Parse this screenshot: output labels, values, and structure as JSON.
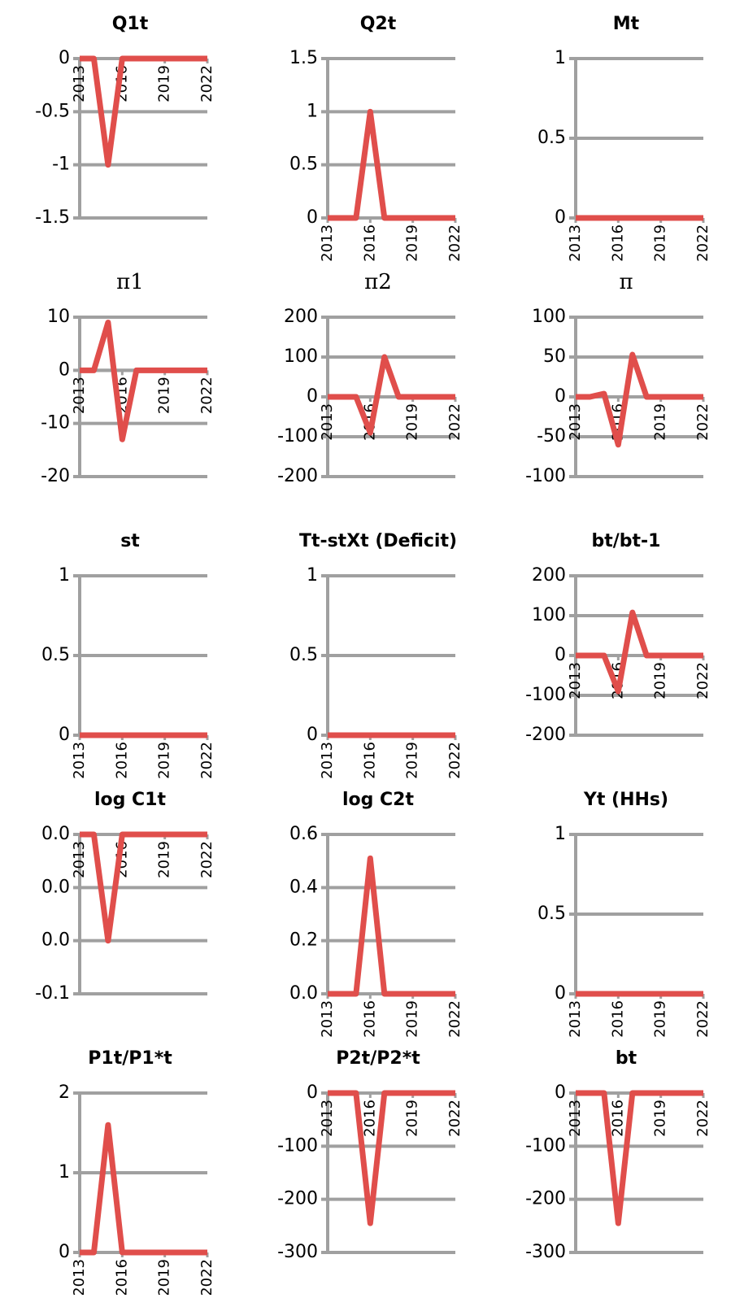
{
  "chart_data": [
    {
      "type": "line",
      "title": "Q1t",
      "x": [
        2013,
        2014,
        2015,
        2016,
        2017,
        2018,
        2019,
        2020,
        2021,
        2022
      ],
      "values": [
        0,
        0,
        -1,
        0,
        0,
        0,
        0,
        0,
        0,
        0
      ],
      "color": "#e04e4b",
      "xlim": [
        2013,
        2022
      ],
      "xticks": [
        2013,
        2016,
        2019,
        2022
      ],
      "ylim": [
        -1.5,
        0
      ],
      "yticks": [
        -1.5,
        -1,
        -0.5,
        0
      ],
      "grid": true
    },
    {
      "type": "line",
      "title": "Q2t",
      "x": [
        2013,
        2014,
        2015,
        2016,
        2017,
        2018,
        2019,
        2020,
        2021,
        2022
      ],
      "values": [
        0,
        0,
        0,
        1,
        0,
        0,
        0,
        0,
        0,
        0
      ],
      "color": "#e04e4b",
      "xlim": [
        2013,
        2022
      ],
      "xticks": [
        2013,
        2016,
        2019,
        2022
      ],
      "ylim": [
        0,
        1.5
      ],
      "yticks": [
        0,
        0.5,
        1,
        1.5
      ],
      "grid": true
    },
    {
      "type": "line",
      "title": "Mt",
      "x": [
        2013,
        2014,
        2015,
        2016,
        2017,
        2018,
        2019,
        2020,
        2021,
        2022
      ],
      "values": [
        0,
        0,
        0,
        0,
        0,
        0,
        0,
        0,
        0,
        0
      ],
      "color": "#e04e4b",
      "xlim": [
        2013,
        2022
      ],
      "xticks": [
        2013,
        2016,
        2019,
        2022
      ],
      "ylim": [
        0,
        1
      ],
      "yticks": [
        0,
        0.5,
        1
      ],
      "grid": true
    },
    {
      "type": "line",
      "title": "π1",
      "x": [
        2013,
        2014,
        2015,
        2016,
        2017,
        2018,
        2019,
        2020,
        2021,
        2022
      ],
      "values": [
        0,
        0,
        9,
        -13,
        0,
        0,
        0,
        0,
        0,
        0
      ],
      "color": "#e04e4b",
      "xlim": [
        2013,
        2022
      ],
      "xticks": [
        2013,
        2016,
        2019,
        2022
      ],
      "ylim": [
        -20,
        10
      ],
      "yticks": [
        -20,
        -10,
        0,
        10
      ],
      "grid": true
    },
    {
      "type": "line",
      "title": "π2",
      "x": [
        2013,
        2014,
        2015,
        2016,
        2017,
        2018,
        2019,
        2020,
        2021,
        2022
      ],
      "values": [
        0,
        0,
        0,
        -90,
        100,
        0,
        0,
        0,
        0,
        0
      ],
      "color": "#e04e4b",
      "xlim": [
        2013,
        2022
      ],
      "xticks": [
        2013,
        2016,
        2019,
        2022
      ],
      "ylim": [
        -200,
        200
      ],
      "yticks": [
        -200,
        -100,
        0,
        100,
        200
      ],
      "grid": true
    },
    {
      "type": "line",
      "title": "π",
      "x": [
        2013,
        2014,
        2015,
        2016,
        2017,
        2018,
        2019,
        2020,
        2021,
        2022
      ],
      "values": [
        0,
        0,
        4,
        -60,
        53,
        0,
        0,
        0,
        0,
        0
      ],
      "color": "#e04e4b",
      "xlim": [
        2013,
        2022
      ],
      "xticks": [
        2013,
        2016,
        2019,
        2022
      ],
      "ylim": [
        -100,
        100
      ],
      "yticks": [
        -100,
        -50,
        0,
        50,
        100
      ],
      "grid": true
    },
    {
      "type": "line",
      "title": "st",
      "x": [
        2013,
        2014,
        2015,
        2016,
        2017,
        2018,
        2019,
        2020,
        2021,
        2022
      ],
      "values": [
        0,
        0,
        0,
        0,
        0,
        0,
        0,
        0,
        0,
        0
      ],
      "color": "#e04e4b",
      "xlim": [
        2013,
        2022
      ],
      "xticks": [
        2013,
        2016,
        2019,
        2022
      ],
      "ylim": [
        0,
        1
      ],
      "yticks": [
        0,
        0.5,
        1
      ],
      "grid": true
    },
    {
      "type": "line",
      "title": "Tt-stXt (Deficit)",
      "x": [
        2013,
        2014,
        2015,
        2016,
        2017,
        2018,
        2019,
        2020,
        2021,
        2022
      ],
      "values": [
        0,
        0,
        0,
        0,
        0,
        0,
        0,
        0,
        0,
        0
      ],
      "color": "#e04e4b",
      "xlim": [
        2013,
        2022
      ],
      "xticks": [
        2013,
        2016,
        2019,
        2022
      ],
      "ylim": [
        0,
        1
      ],
      "yticks": [
        0,
        0.5,
        1
      ],
      "grid": true
    },
    {
      "type": "line",
      "title": "bt/bt-1",
      "x": [
        2013,
        2014,
        2015,
        2016,
        2017,
        2018,
        2019,
        2020,
        2021,
        2022
      ],
      "values": [
        0,
        0,
        0,
        -90,
        108,
        0,
        0,
        0,
        0,
        0
      ],
      "color": "#e04e4b",
      "xlim": [
        2013,
        2022
      ],
      "xticks": [
        2013,
        2016,
        2019,
        2022
      ],
      "ylim": [
        -200,
        200
      ],
      "yticks": [
        -200,
        -100,
        0,
        100,
        200
      ],
      "grid": true
    },
    {
      "type": "line",
      "title": "log C1t",
      "x": [
        2013,
        2014,
        2015,
        2016,
        2017,
        2018,
        2019,
        2020,
        2021,
        2022
      ],
      "values": [
        0,
        0,
        -0.04,
        0,
        0,
        0,
        0,
        0,
        0,
        0
      ],
      "color": "#e04e4b",
      "xlim": [
        2013,
        2022
      ],
      "xticks": [
        2013,
        2016,
        2019,
        2022
      ],
      "ylim": [
        -0.06,
        0
      ],
      "yticks": [
        {
          "value": -0.06,
          "label": "-0.1"
        },
        {
          "value": -0.04,
          "label": "0.0"
        },
        {
          "value": -0.02,
          "label": "0.0"
        },
        {
          "value": 0,
          "label": "0.0"
        }
      ],
      "grid": true
    },
    {
      "type": "line",
      "title": "log C2t",
      "x": [
        2013,
        2014,
        2015,
        2016,
        2017,
        2018,
        2019,
        2020,
        2021,
        2022
      ],
      "values": [
        0,
        0,
        0,
        0.51,
        0,
        0,
        0,
        0,
        0,
        0
      ],
      "color": "#e04e4b",
      "xlim": [
        2013,
        2022
      ],
      "xticks": [
        2013,
        2016,
        2019,
        2022
      ],
      "ylim": [
        0,
        0.6
      ],
      "yticks": [
        {
          "value": 0,
          "label": "0.0"
        },
        0.2,
        0.4,
        0.6
      ],
      "grid": true
    },
    {
      "type": "line",
      "title": "Yt (HHs)",
      "x": [
        2013,
        2014,
        2015,
        2016,
        2017,
        2018,
        2019,
        2020,
        2021,
        2022
      ],
      "values": [
        0,
        0,
        0,
        0,
        0,
        0,
        0,
        0,
        0,
        0
      ],
      "color": "#e04e4b",
      "xlim": [
        2013,
        2022
      ],
      "xticks": [
        2013,
        2016,
        2019,
        2022
      ],
      "ylim": [
        0,
        1
      ],
      "yticks": [
        0,
        0.5,
        1
      ],
      "grid": true
    },
    {
      "type": "line",
      "title": "P1t/P1*t",
      "x": [
        2013,
        2014,
        2015,
        2016,
        2017,
        2018,
        2019,
        2020,
        2021,
        2022
      ],
      "values": [
        0,
        0,
        1.6,
        0,
        0,
        0,
        0,
        0,
        0,
        0
      ],
      "color": "#e04e4b",
      "xlim": [
        2013,
        2022
      ],
      "xticks": [
        2013,
        2016,
        2019,
        2022
      ],
      "ylim": [
        0,
        2
      ],
      "yticks": [
        0,
        1,
        2
      ],
      "grid": true
    },
    {
      "type": "line",
      "title": "P2t/P2*t",
      "x": [
        2013,
        2014,
        2015,
        2016,
        2017,
        2018,
        2019,
        2020,
        2021,
        2022
      ],
      "values": [
        0,
        0,
        0,
        -245,
        0,
        0,
        0,
        0,
        0,
        0
      ],
      "color": "#e04e4b",
      "xlim": [
        2013,
        2022
      ],
      "xticks": [
        2013,
        2016,
        2019,
        2022
      ],
      "ylim": [
        -300,
        0
      ],
      "yticks": [
        -300,
        -200,
        -100,
        0
      ],
      "grid": true
    },
    {
      "type": "line",
      "title": "bt",
      "x": [
        2013,
        2014,
        2015,
        2016,
        2017,
        2018,
        2019,
        2020,
        2021,
        2022
      ],
      "values": [
        0,
        0,
        0,
        -245,
        0,
        0,
        0,
        0,
        0,
        0
      ],
      "color": "#e04e4b",
      "xlim": [
        2013,
        2022
      ],
      "xticks": [
        2013,
        2016,
        2019,
        2022
      ],
      "ylim": [
        -300,
        0
      ],
      "yticks": [
        -300,
        -200,
        -100,
        0
      ],
      "grid": true
    }
  ]
}
